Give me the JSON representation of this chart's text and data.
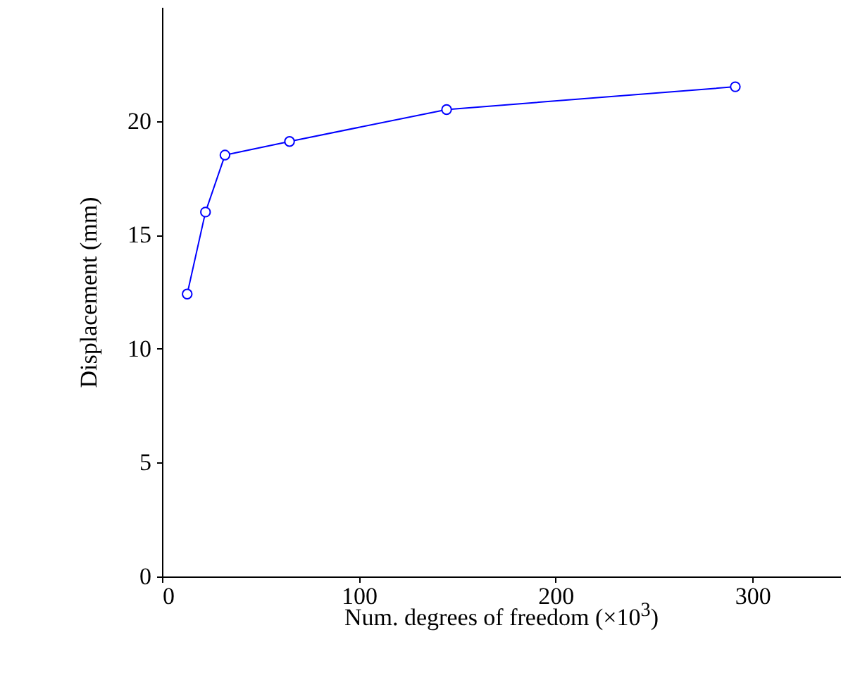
{
  "chart_data": {
    "type": "line",
    "xlabel": "Num. degrees of freedom (×10$^{3}$)",
    "ylabel": "Displacement (mm)",
    "x": [
      12.8,
      22.1,
      32,
      64.8,
      144.6,
      291.3
    ],
    "series": [
      {
        "color": "#0000ff",
        "values": [
          12.4,
          16.0,
          18.5,
          19.1,
          20.5,
          21.5
        ]
      }
    ],
    "xlim": [
      0,
      345
    ],
    "ylim": [
      0,
      25
    ],
    "xticks": [
      0,
      100,
      200,
      300
    ],
    "yticks": [
      0,
      5,
      10,
      15,
      20
    ],
    "grid": false,
    "marker": "circle",
    "line_style": "solid"
  }
}
